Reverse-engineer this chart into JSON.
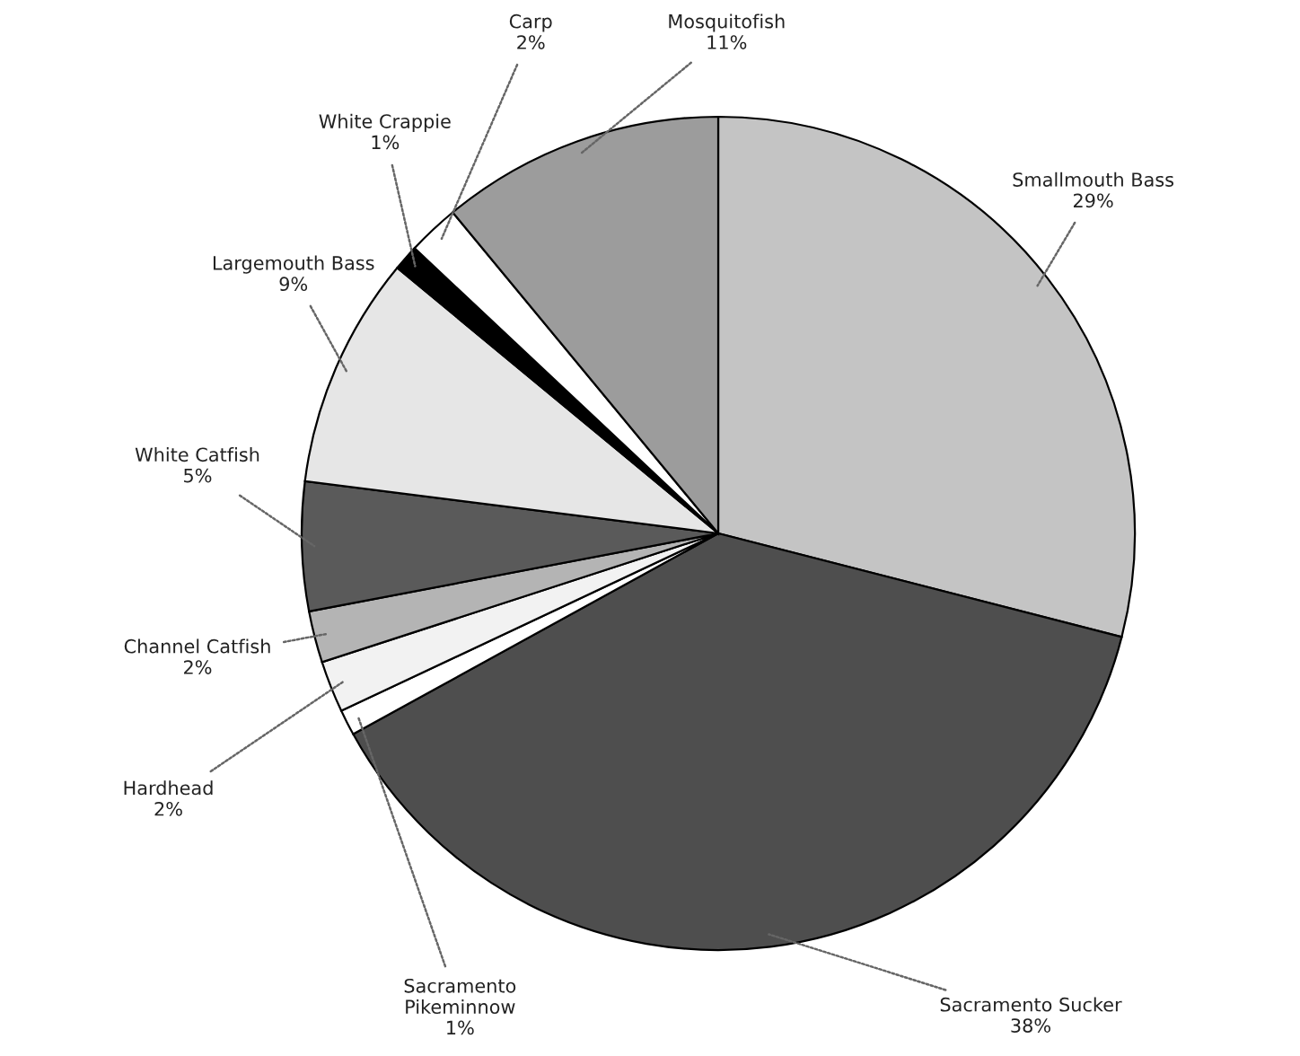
{
  "chart_data": {
    "type": "pie",
    "categories": [
      "Smallmouth Bass",
      "Sacramento Sucker",
      "Sacramento\nPikeminnow",
      "Hardhead",
      "Channel Catfish",
      "White Catfish",
      "Largemouth Bass",
      "White Crappie",
      "Carp",
      "Mosquitofish"
    ],
    "values": [
      29,
      38,
      1,
      2,
      2,
      5,
      9,
      1,
      2,
      11
    ],
    "value_labels": [
      "29%",
      "38%",
      "1%",
      "2%",
      "2%",
      "5%",
      "9%",
      "1%",
      "2%",
      "11%"
    ],
    "colors": [
      "#c4c4c4",
      "#4e4e4e",
      "#ffffff",
      "#f2f2f2",
      "#b4b4b4",
      "#5a5a5a",
      "#e6e6e6",
      "#000000",
      "#ffffff",
      "#9c9c9c"
    ]
  }
}
